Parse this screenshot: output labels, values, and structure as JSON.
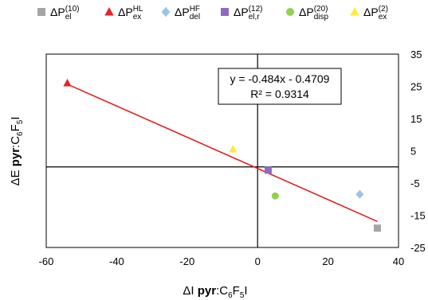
{
  "chart_data": {
    "type": "scatter",
    "xlabel": {
      "base": "ΔI ",
      "bold": "pyr",
      "rest": ":C",
      "sub1": "6",
      "mid": "F",
      "sub2": "5",
      "end": "I"
    },
    "ylabel": {
      "base": "ΔE ",
      "bold": "pyr",
      "rest": ":C",
      "sub1": "6",
      "mid": "F",
      "sub2": "5",
      "end": "I"
    },
    "xlim": [
      -60,
      40
    ],
    "ylim": [
      -25,
      35
    ],
    "xticks": [
      -60,
      -40,
      -20,
      0,
      20,
      40
    ],
    "yticks_labeled": [
      35,
      25,
      15,
      5,
      -5,
      -15,
      -25
    ],
    "ytick_labels": [
      "35",
      "25",
      "15",
      "5",
      "-5",
      "-15",
      "-25"
    ],
    "xtick_labels": [
      "-60",
      "-40",
      "-20",
      "0",
      "20",
      "40"
    ],
    "legend_position": "top",
    "series": [
      {
        "name": "ΔP",
        "sup": "(10)",
        "sub": "el",
        "marker": "square",
        "color": "#a5a5a5",
        "x": [
          34
        ],
        "y": [
          -19
        ]
      },
      {
        "name": "ΔP",
        "sup": "HL",
        "sub": "ex",
        "marker": "triangle",
        "color": "#e8242a",
        "x": [
          -54
        ],
        "y": [
          26
        ]
      },
      {
        "name": "ΔP",
        "sup": "HF",
        "sub": "del",
        "marker": "diamond",
        "color": "#9dc3e6",
        "x": [
          29
        ],
        "y": [
          -8.5
        ]
      },
      {
        "name": "ΔP",
        "sup": "(12)",
        "sub": "el,r",
        "marker": "square",
        "color": "#8e6bbf",
        "x": [
          3
        ],
        "y": [
          -1
        ]
      },
      {
        "name": "ΔP",
        "sup": "(20)",
        "sub": "disp",
        "marker": "circle",
        "color": "#92d050",
        "x": [
          5
        ],
        "y": [
          -9
        ]
      },
      {
        "name": "ΔP",
        "sup": "(2)",
        "sub": "ex",
        "marker": "triangle",
        "color": "#ffeb3b",
        "x": [
          -7
        ],
        "y": [
          5.5
        ]
      }
    ],
    "trendline": {
      "color": "#e02020",
      "slope": -0.484,
      "intercept": -0.4709,
      "x_range": [
        -54,
        34
      ],
      "equation": "y = -0.484x - 0.4709",
      "r_squared": "R² = 0.9314"
    }
  }
}
